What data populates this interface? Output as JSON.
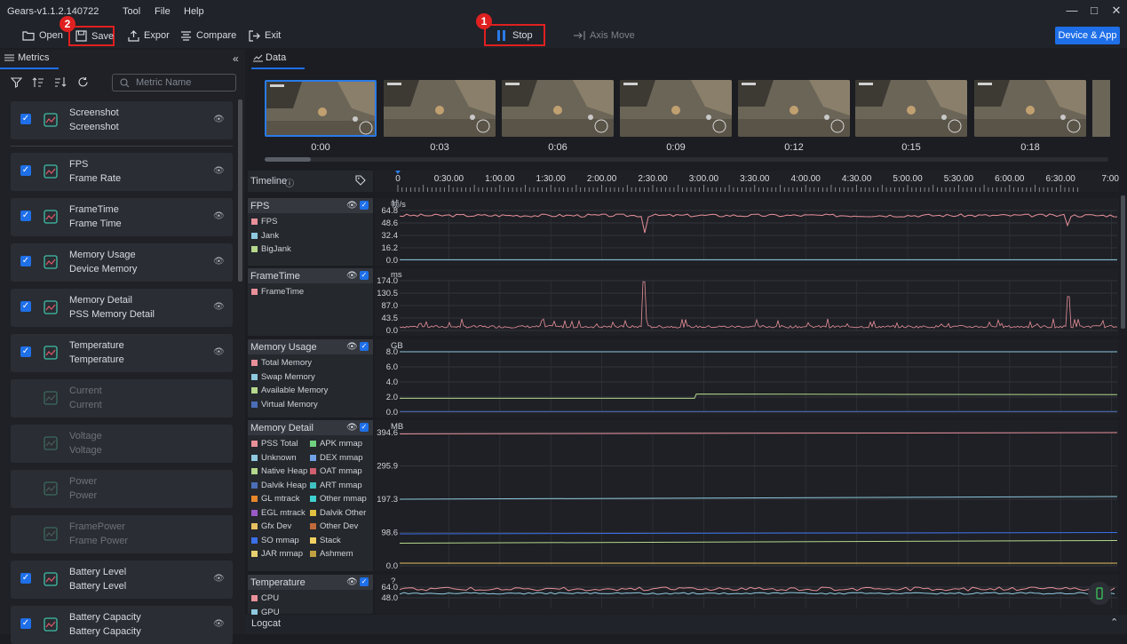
{
  "app": {
    "title": "Gears-v1.1.2.140722",
    "menus": [
      "Tool",
      "File",
      "Help"
    ]
  },
  "toolbar": {
    "open": "Open",
    "save": "Save",
    "export": "Expor",
    "compare": "Compare",
    "exit": "Exit",
    "stop": "Stop",
    "axis_move": "Axis Move",
    "device_app": "Device & App",
    "badge_stop": "1",
    "badge_save": "2"
  },
  "left": {
    "tab": "Metrics",
    "search_placeholder": "Metric Name",
    "metrics": [
      {
        "title": "Screenshot",
        "sub": "Screenshot",
        "checked": true,
        "icon": "image-icon"
      },
      {
        "title": "FPS",
        "sub": "Frame Rate",
        "checked": true,
        "icon": "fps-icon"
      },
      {
        "title": "FrameTime",
        "sub": "Frame Time",
        "checked": true,
        "icon": "frametime-icon"
      },
      {
        "title": "Memory Usage",
        "sub": "Device Memory",
        "checked": true,
        "icon": "memory-icon"
      },
      {
        "title": "Memory Detail",
        "sub": "PSS Memory Detail",
        "checked": true,
        "icon": "memory-detail-icon"
      },
      {
        "title": "Temperature",
        "sub": "Temperature",
        "checked": true,
        "icon": "thermometer-icon"
      },
      {
        "title": "Current",
        "sub": "Current",
        "checked": false,
        "icon": "current-icon"
      },
      {
        "title": "Voltage",
        "sub": "Voltage",
        "checked": false,
        "icon": "voltage-icon"
      },
      {
        "title": "Power",
        "sub": "Power",
        "checked": false,
        "icon": "power-icon"
      },
      {
        "title": "FramePower",
        "sub": "Frame Power",
        "checked": false,
        "icon": "framepower-icon"
      },
      {
        "title": "Battery Level",
        "sub": "Battery Level",
        "checked": true,
        "icon": "battery-icon"
      },
      {
        "title": "Battery Capacity",
        "sub": "Battery Capacity",
        "checked": true,
        "icon": "battery-capacity-icon"
      }
    ]
  },
  "data": {
    "tab": "Data",
    "thumb_labels": [
      "0:00",
      "0:03",
      "0:06",
      "0:09",
      "0:12",
      "0:15",
      "0:18"
    ],
    "timeline": {
      "label": "Timeline",
      "ticks": [
        "0",
        "0:30.00",
        "1:00.00",
        "1:30.00",
        "2:00.00",
        "2:30.00",
        "3:00.00",
        "3:30.00",
        "4:00.00",
        "4:30.00",
        "5:00.00",
        "5:30.00",
        "6:00.00",
        "6:30.00",
        "7:00."
      ]
    },
    "fps": {
      "name": "FPS",
      "unit": "帧/s",
      "yticks": [
        "64.8",
        "48.6",
        "32.4",
        "16.2",
        "0.0"
      ],
      "legend": [
        {
          "label": "FPS",
          "color": "#e8909a"
        },
        {
          "label": "Jank",
          "color": "#8ec9e0"
        },
        {
          "label": "BigJank",
          "color": "#b4d88c"
        }
      ]
    },
    "frametime": {
      "name": "FrameTime",
      "unit": "ms",
      "yticks": [
        "174.0",
        "130.5",
        "87.0",
        "43.5",
        "0.0"
      ],
      "legend": [
        {
          "label": "FrameTime",
          "color": "#e8909a"
        }
      ]
    },
    "memory_usage": {
      "name": "Memory Usage",
      "unit": "GB",
      "yticks": [
        "8.0",
        "6.0",
        "4.0",
        "2.0",
        "0.0"
      ],
      "legend": [
        {
          "label": "Total Memory",
          "color": "#e8909a"
        },
        {
          "label": "Swap Memory",
          "color": "#8ec9e0"
        },
        {
          "label": "Available Memory",
          "color": "#b4d88c"
        },
        {
          "label": "Virtual Memory",
          "color": "#4a6fb8"
        }
      ]
    },
    "memory_detail": {
      "name": "Memory Detail",
      "unit": "MB",
      "yticks": [
        "394.6",
        "295.9",
        "197.3",
        "98.6",
        "0.0"
      ],
      "legend_left": [
        {
          "label": "PSS Total",
          "color": "#e8909a"
        },
        {
          "label": "Unknown",
          "color": "#8ec9e0"
        },
        {
          "label": "Native Heap",
          "color": "#b4d88c"
        },
        {
          "label": "Dalvik Heap",
          "color": "#4a6fb8"
        },
        {
          "label": "GL mtrack",
          "color": "#e8862a"
        },
        {
          "label": "EGL mtrack",
          "color": "#9a5ac8"
        },
        {
          "label": "Gfx Dev",
          "color": "#e8c060"
        },
        {
          "label": "SO mmap",
          "color": "#3a6fe8"
        },
        {
          "label": "JAR mmap",
          "color": "#e8d070"
        }
      ],
      "legend_right": [
        {
          "label": "APK mmap",
          "color": "#70d080"
        },
        {
          "label": "DEX mmap",
          "color": "#70a0e8"
        },
        {
          "label": "OAT mmap",
          "color": "#d06070"
        },
        {
          "label": "ART mmap",
          "color": "#40c0c0"
        },
        {
          "label": "Other mmap",
          "color": "#40d0d0"
        },
        {
          "label": "Dalvik Other",
          "color": "#e0c040"
        },
        {
          "label": "Other Dev",
          "color": "#c06a3a"
        },
        {
          "label": "Stack",
          "color": "#f0d060"
        },
        {
          "label": "Ashmem",
          "color": "#c0a040"
        }
      ]
    },
    "temperature": {
      "name": "Temperature",
      "unit": "?",
      "yticks": [
        "64.0",
        "48.0"
      ],
      "legend": [
        {
          "label": "CPU",
          "color": "#e8909a"
        },
        {
          "label": "GPU",
          "color": "#8ec9e0"
        }
      ]
    },
    "logcat": "Logcat"
  }
}
